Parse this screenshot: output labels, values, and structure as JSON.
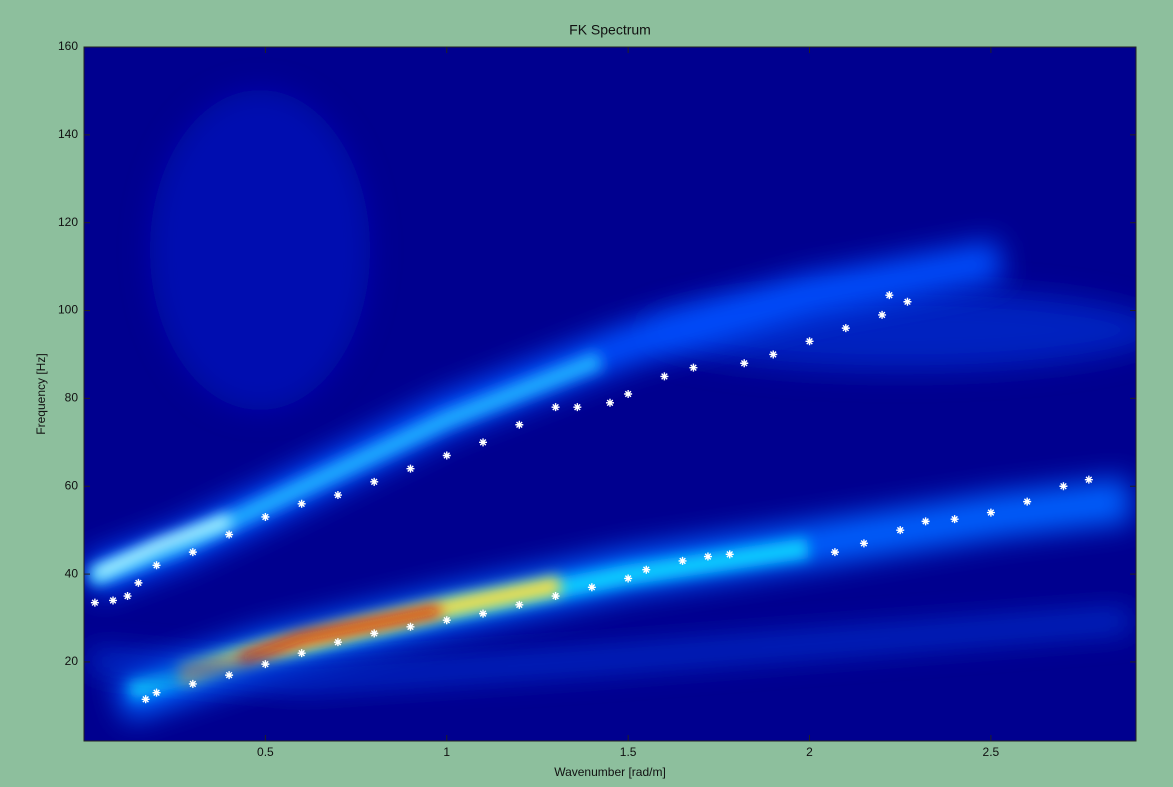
{
  "chart_data": {
    "type": "scatter",
    "title": "FK Spectrum",
    "x_label": "Wavenumber [rad/m]",
    "y_label": "Frequency [Hz]",
    "xlim": [
      0,
      2.9
    ],
    "ylim": [
      2,
      160
    ],
    "xticks": [
      0.5,
      1,
      1.5,
      2,
      2.5
    ],
    "yticks": [
      20,
      40,
      60,
      80,
      100,
      120,
      140,
      160
    ],
    "series": [
      {
        "color": "#ffffff",
        "x": [
          0.03,
          0.08,
          0.12,
          0.15,
          0.2,
          0.3,
          0.4,
          0.5,
          0.6,
          0.7,
          0.8,
          0.9,
          1.0,
          1.1,
          1.2,
          1.3,
          1.36,
          1.45,
          1.5,
          1.6,
          1.68,
          1.82,
          1.9,
          2.0,
          2.1,
          2.2,
          2.27,
          2.22
        ],
        "values": [
          33.5,
          34,
          35,
          38,
          42,
          45,
          49,
          53,
          56,
          58,
          61,
          64,
          67,
          70,
          74,
          78,
          78,
          79,
          81,
          85,
          87,
          88,
          90,
          93,
          96,
          99,
          102,
          103.5
        ]
      },
      {
        "color": "#ffffff",
        "x": [
          0.17,
          0.2,
          0.3,
          0.4,
          0.5,
          0.6,
          0.7,
          0.8,
          0.9,
          1.0,
          1.1,
          1.2,
          1.3,
          1.4,
          1.5,
          1.55,
          1.65,
          1.72,
          1.78,
          2.07,
          2.15,
          2.25,
          2.32,
          2.4,
          2.5,
          2.6,
          2.7,
          2.77
        ],
        "values": [
          11.5,
          13,
          15,
          17,
          19.5,
          22,
          24.5,
          26.5,
          28,
          29.5,
          31,
          33,
          35,
          37,
          39,
          41,
          43,
          44,
          44.5,
          45,
          47,
          50,
          52,
          52.5,
          54,
          56.5,
          60,
          61.5
        ]
      }
    ]
  }
}
